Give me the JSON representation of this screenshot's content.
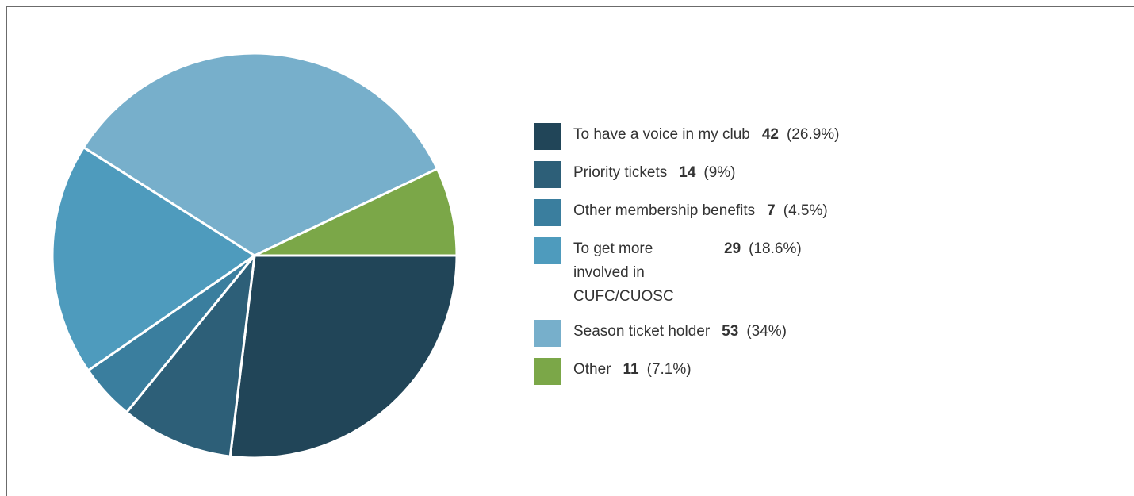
{
  "chart_data": {
    "type": "pie",
    "title": "",
    "start_angle_deg": 0,
    "direction": "clockwise",
    "slices": [
      {
        "label": "To have a voice in my club",
        "value": 42,
        "percent": "(26.9%)",
        "color": "#214558"
      },
      {
        "label": "Priority tickets",
        "value": 14,
        "percent": "(9%)",
        "color": "#2d5f78"
      },
      {
        "label": "Other membership benefits",
        "value": 7,
        "percent": "(4.5%)",
        "color": "#3a7e9e"
      },
      {
        "label": "To get more involved in CUFC/CUOSC",
        "value": 29,
        "percent": "(18.6%)",
        "color": "#4e9bbd"
      },
      {
        "label": "Season ticket holder",
        "value": 53,
        "percent": "(34%)",
        "color": "#77afcb"
      },
      {
        "label": "Other",
        "value": 11,
        "percent": "(7.1%)",
        "color": "#7ba748"
      }
    ],
    "legend_position": "right"
  }
}
